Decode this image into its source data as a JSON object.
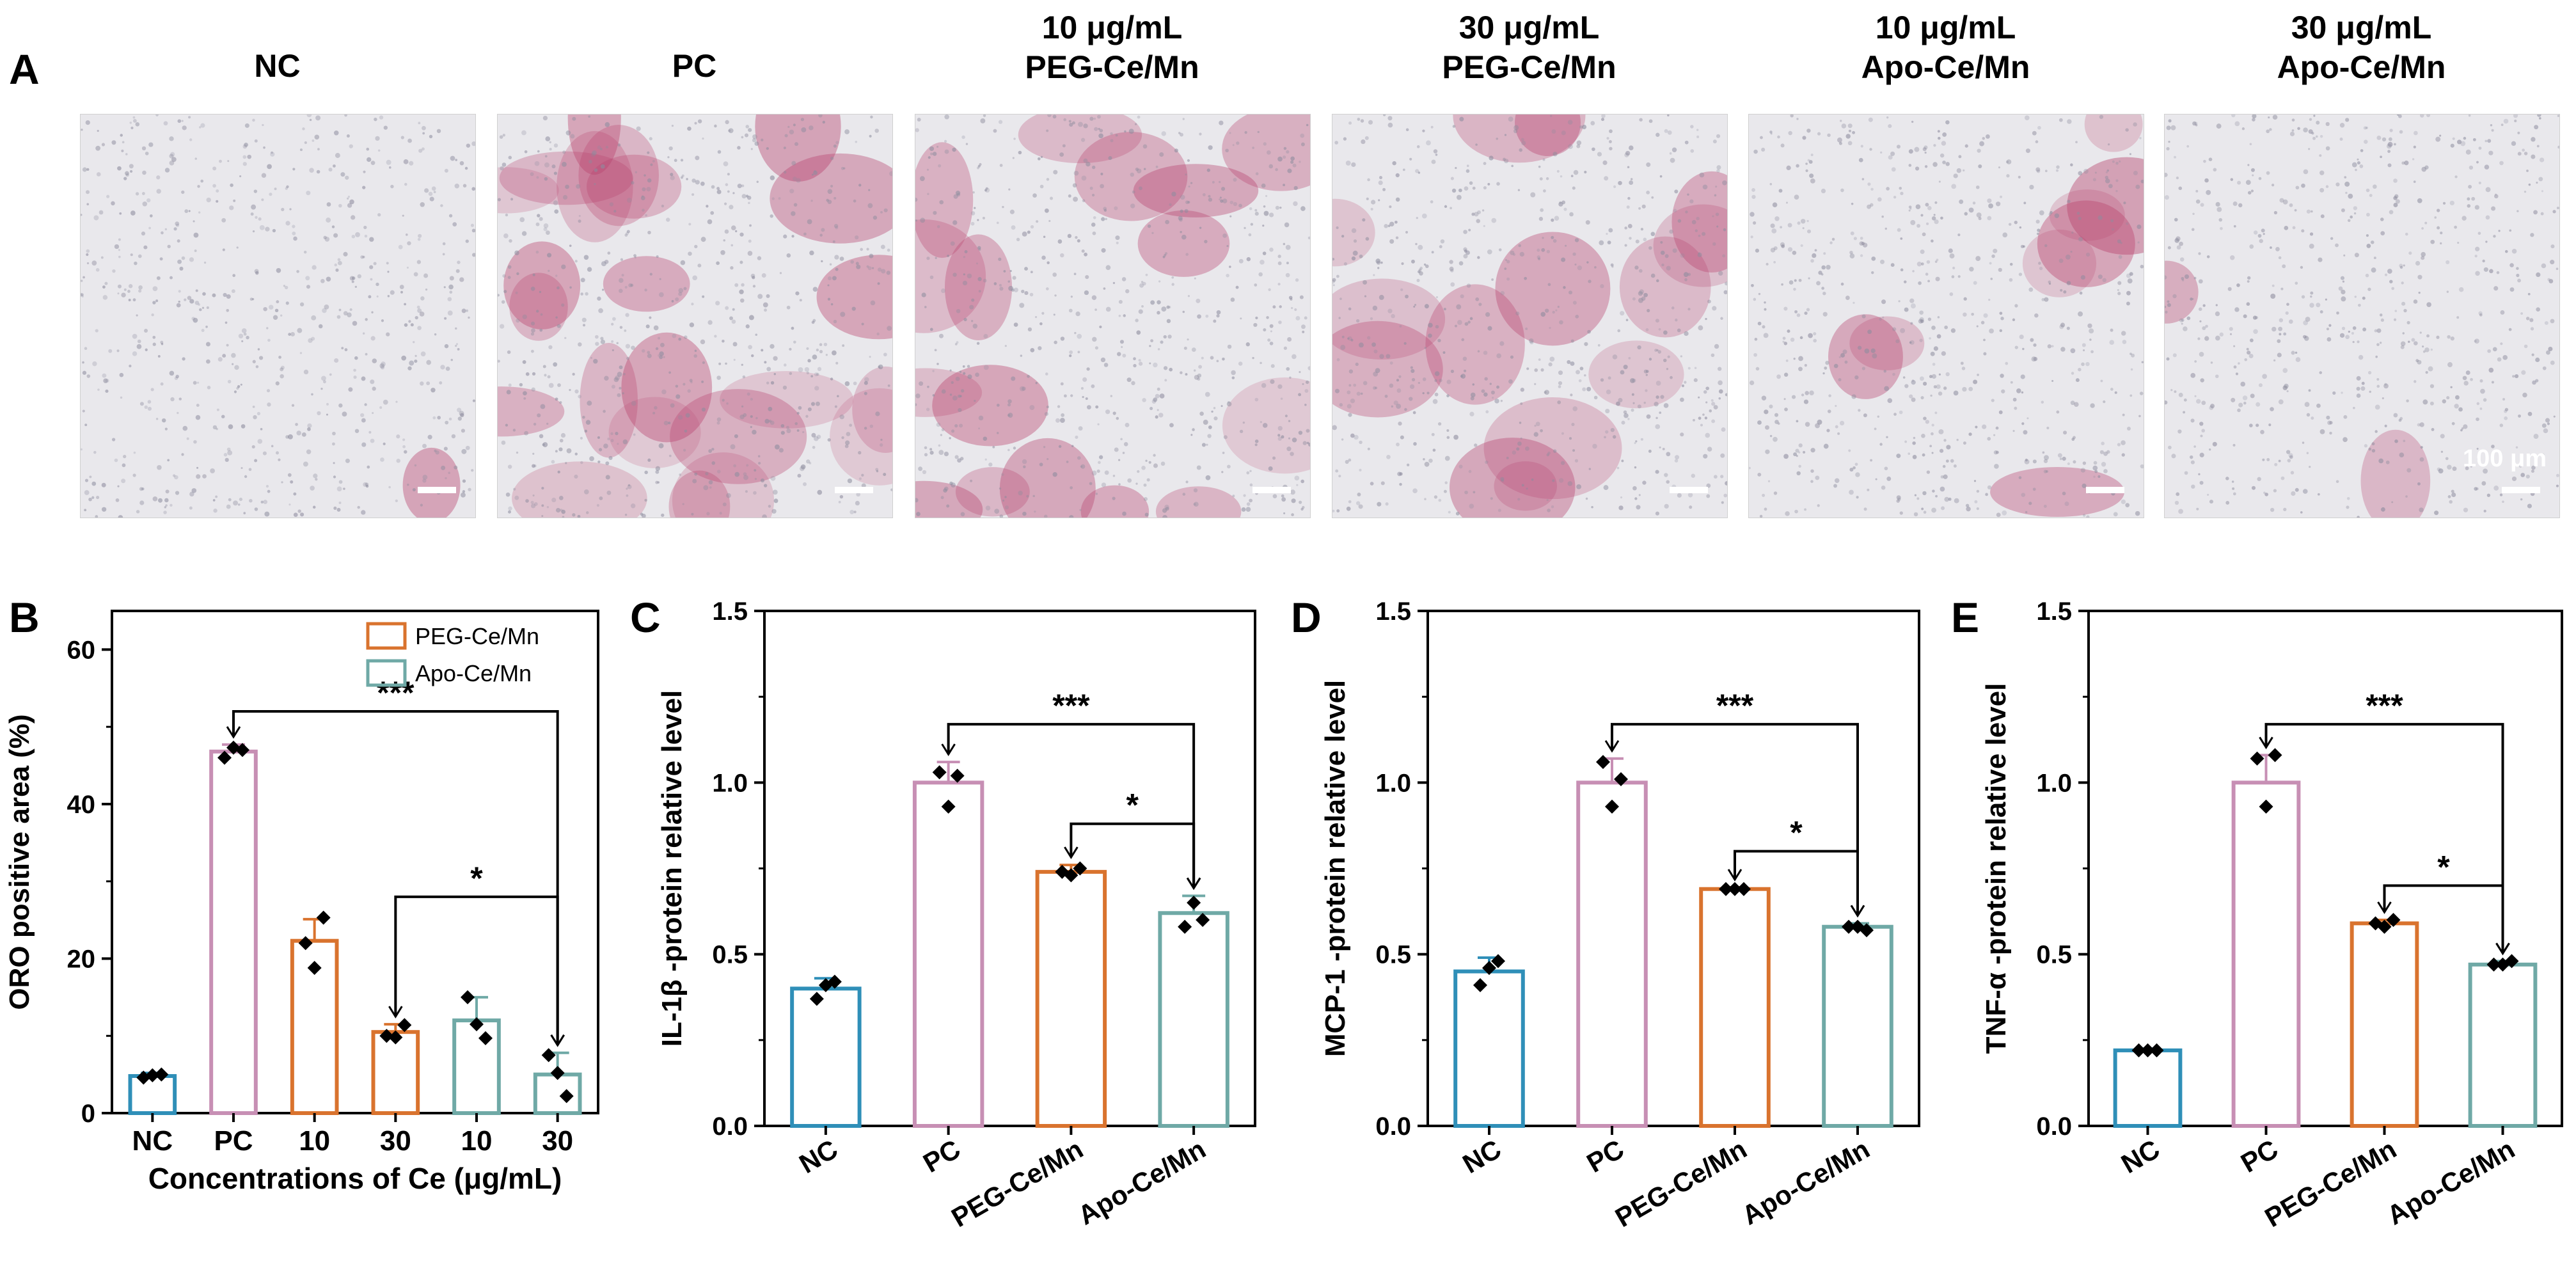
{
  "panel_a": {
    "letter": "A",
    "images": [
      {
        "title_line1": "NC",
        "title_line2": "",
        "stain": 0.05
      },
      {
        "title_line1": "PC",
        "title_line2": "",
        "stain": 0.9
      },
      {
        "title_line1": "10 μg/mL",
        "title_line2": "PEG-Ce/Mn",
        "stain": 0.6
      },
      {
        "title_line1": "30 μg/mL",
        "title_line2": "PEG-Ce/Mn",
        "stain": 0.55
      },
      {
        "title_line1": "10 μg/mL",
        "title_line2": "Apo-Ce/Mn",
        "stain": 0.3
      },
      {
        "title_line1": "30 μg/mL",
        "title_line2": "Apo-Ce/Mn",
        "stain": 0.08
      }
    ],
    "scale_label": "100 μm"
  },
  "colors": {
    "nc": "#2f8fb8",
    "pc": "#c78fb4",
    "peg": "#d9732e",
    "apo": "#6fa9a6",
    "stain": "#b8436e",
    "background_cells": "#8d8c9e"
  },
  "chart_data": [
    {
      "letter": "B",
      "type": "bar",
      "categories": [
        "NC",
        "PC",
        "10",
        "30",
        "10",
        "30"
      ],
      "values": [
        4.8,
        46.8,
        22.3,
        10.5,
        12.0,
        5.0
      ],
      "errors": [
        0.4,
        0.9,
        2.8,
        1.0,
        3.0,
        2.8
      ],
      "points": [
        [
          4.6,
          4.9,
          5.0
        ],
        [
          46.0,
          47.3,
          47.0
        ],
        [
          22.0,
          18.8,
          25.3
        ],
        [
          10.0,
          9.8,
          11.4
        ],
        [
          15.0,
          11.5,
          9.7
        ],
        [
          7.5,
          5.2,
          2.2
        ]
      ],
      "bar_colors": [
        "nc",
        "pc",
        "peg",
        "peg",
        "apo",
        "apo"
      ],
      "xlabel": "Concentrations of Ce (μg/mL)",
      "ylabel": "ORO positive area (%)",
      "ylim": [
        0,
        65
      ],
      "yticks": [
        0,
        20,
        40,
        60
      ],
      "legend": [
        {
          "name": "PEG-Ce/Mn",
          "color": "peg"
        },
        {
          "name": "Apo-Ce/Mn",
          "color": "apo"
        }
      ],
      "legend_position": "top-right",
      "significance": [
        {
          "from": 1,
          "to": 5,
          "label": "***",
          "y": 52
        },
        {
          "from": 3,
          "to": 5,
          "label": "*",
          "y": 28
        }
      ]
    },
    {
      "letter": "C",
      "type": "bar",
      "categories": [
        "NC",
        "PC",
        "PEG-Ce/Mn",
        "Apo-Ce/Mn"
      ],
      "values": [
        0.4,
        1.0,
        0.74,
        0.62
      ],
      "errors": [
        0.03,
        0.06,
        0.02,
        0.05
      ],
      "points": [
        [
          0.37,
          0.41,
          0.42
        ],
        [
          1.03,
          0.93,
          1.02
        ],
        [
          0.74,
          0.73,
          0.75
        ],
        [
          0.58,
          0.65,
          0.6
        ]
      ],
      "bar_colors": [
        "nc",
        "pc",
        "peg",
        "apo"
      ],
      "xlabel": "",
      "ylabel": "IL-1β -protein relative level",
      "ylim": [
        0,
        1.5
      ],
      "yticks": [
        0.0,
        0.5,
        1.0,
        1.5
      ],
      "significance": [
        {
          "from": 1,
          "to": 3,
          "label": "***",
          "y": 1.17
        },
        {
          "from": 2,
          "to": 3,
          "label": "*",
          "y": 0.88
        }
      ]
    },
    {
      "letter": "D",
      "type": "bar",
      "categories": [
        "NC",
        "PC",
        "PEG-Ce/Mn",
        "Apo-Ce/Mn"
      ],
      "values": [
        0.45,
        1.0,
        0.69,
        0.58
      ],
      "errors": [
        0.04,
        0.07,
        0.005,
        0.01
      ],
      "points": [
        [
          0.41,
          0.46,
          0.48
        ],
        [
          1.06,
          0.93,
          1.01
        ],
        [
          0.69,
          0.69,
          0.69
        ],
        [
          0.58,
          0.58,
          0.57
        ]
      ],
      "bar_colors": [
        "nc",
        "pc",
        "peg",
        "apo"
      ],
      "xlabel": "",
      "ylabel": "MCP-1 -protein relative level",
      "ylim": [
        0,
        1.5
      ],
      "yticks": [
        0.0,
        0.5,
        1.0,
        1.5
      ],
      "significance": [
        {
          "from": 1,
          "to": 3,
          "label": "***",
          "y": 1.17
        },
        {
          "from": 2,
          "to": 3,
          "label": "*",
          "y": 0.8
        }
      ]
    },
    {
      "letter": "E",
      "type": "bar",
      "categories": [
        "NC",
        "PC",
        "PEG-Ce/Mn",
        "Apo-Ce/Mn"
      ],
      "values": [
        0.22,
        1.0,
        0.59,
        0.47
      ],
      "errors": [
        0.005,
        0.08,
        0.01,
        0.01
      ],
      "points": [
        [
          0.22,
          0.22,
          0.22
        ],
        [
          1.07,
          0.93,
          1.08
        ],
        [
          0.59,
          0.58,
          0.6
        ],
        [
          0.47,
          0.47,
          0.48
        ]
      ],
      "bar_colors": [
        "nc",
        "pc",
        "peg",
        "apo"
      ],
      "xlabel": "",
      "ylabel": "TNF-α -protein relative level",
      "ylim": [
        0,
        1.5
      ],
      "yticks": [
        0.0,
        0.5,
        1.0,
        1.5
      ],
      "significance": [
        {
          "from": 1,
          "to": 3,
          "label": "***",
          "y": 1.17
        },
        {
          "from": 2,
          "to": 3,
          "label": "*",
          "y": 0.7
        }
      ]
    }
  ]
}
